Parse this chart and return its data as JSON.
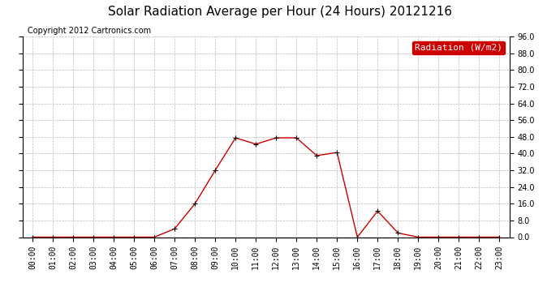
{
  "title": "Solar Radiation Average per Hour (24 Hours) 20121216",
  "copyright": "Copyright 2012 Cartronics.com",
  "legend_label": "Radiation (W/m2)",
  "hours": [
    "00:00",
    "01:00",
    "02:00",
    "03:00",
    "04:00",
    "05:00",
    "06:00",
    "07:00",
    "08:00",
    "09:00",
    "10:00",
    "11:00",
    "12:00",
    "13:00",
    "14:00",
    "15:00",
    "16:00",
    "17:00",
    "18:00",
    "19:00",
    "20:00",
    "21:00",
    "22:00",
    "23:00"
  ],
  "values": [
    0.0,
    0.0,
    0.0,
    0.0,
    0.0,
    0.0,
    0.0,
    4.0,
    16.0,
    32.0,
    47.5,
    44.5,
    47.5,
    47.5,
    39.0,
    40.5,
    0.0,
    12.5,
    2.0,
    0.0,
    0.0,
    0.0,
    0.0,
    0.0
  ],
  "line_color": "#cc0000",
  "marker_color": "#000000",
  "bg_color": "#ffffff",
  "grid_color": "#bbbbbb",
  "ylim": [
    0.0,
    96.0
  ],
  "yticks": [
    0.0,
    8.0,
    16.0,
    24.0,
    32.0,
    40.0,
    48.0,
    56.0,
    64.0,
    72.0,
    80.0,
    88.0,
    96.0
  ],
  "title_fontsize": 11,
  "copyright_fontsize": 7,
  "legend_fontsize": 8,
  "tick_fontsize": 7
}
